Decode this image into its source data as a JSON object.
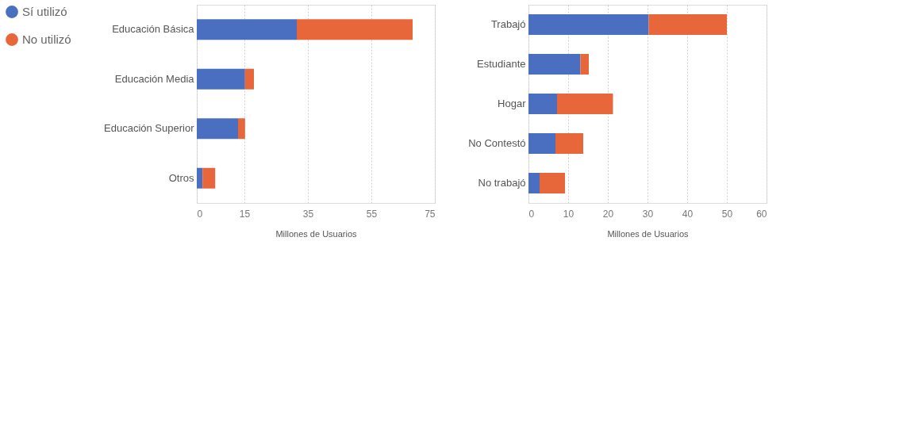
{
  "chart_data": [
    {
      "type": "bar",
      "orientation": "horizontal",
      "stacked": true,
      "categories": [
        "Educación Básica",
        "Educación Media",
        "Educación Superior",
        "Otros"
      ],
      "xlabel": "Millones de Usuarios",
      "xlim": [
        0,
        75
      ],
      "xticks": [
        0,
        15,
        35,
        55,
        75
      ],
      "grid": "x",
      "legend": "left",
      "series": [
        {
          "name": "Sí utilizó",
          "color": "#4a6fc1",
          "values": [
            31.5,
            15.2,
            13,
            1.8
          ]
        },
        {
          "name": "No utilizó",
          "color": "#e8673a",
          "values": [
            36.5,
            2.8,
            2.2,
            4
          ]
        }
      ]
    },
    {
      "type": "bar",
      "orientation": "horizontal",
      "stacked": true,
      "categories": [
        "Trabajó",
        "Estudiante",
        "Hogar",
        "No Contestó",
        "No trabajó"
      ],
      "xlabel": "Millones de Usuarios",
      "xlim": [
        0,
        60
      ],
      "xticks": [
        0,
        10,
        20,
        30,
        40,
        50,
        60
      ],
      "grid": "x",
      "series": [
        {
          "color": "#4a6fc1",
          "values": [
            30.3,
            13.1,
            7.2,
            6.8,
            2.8
          ]
        },
        {
          "color": "#e8673a",
          "values": [
            19.7,
            2.1,
            14.1,
            7,
            6.4
          ]
        }
      ]
    }
  ]
}
